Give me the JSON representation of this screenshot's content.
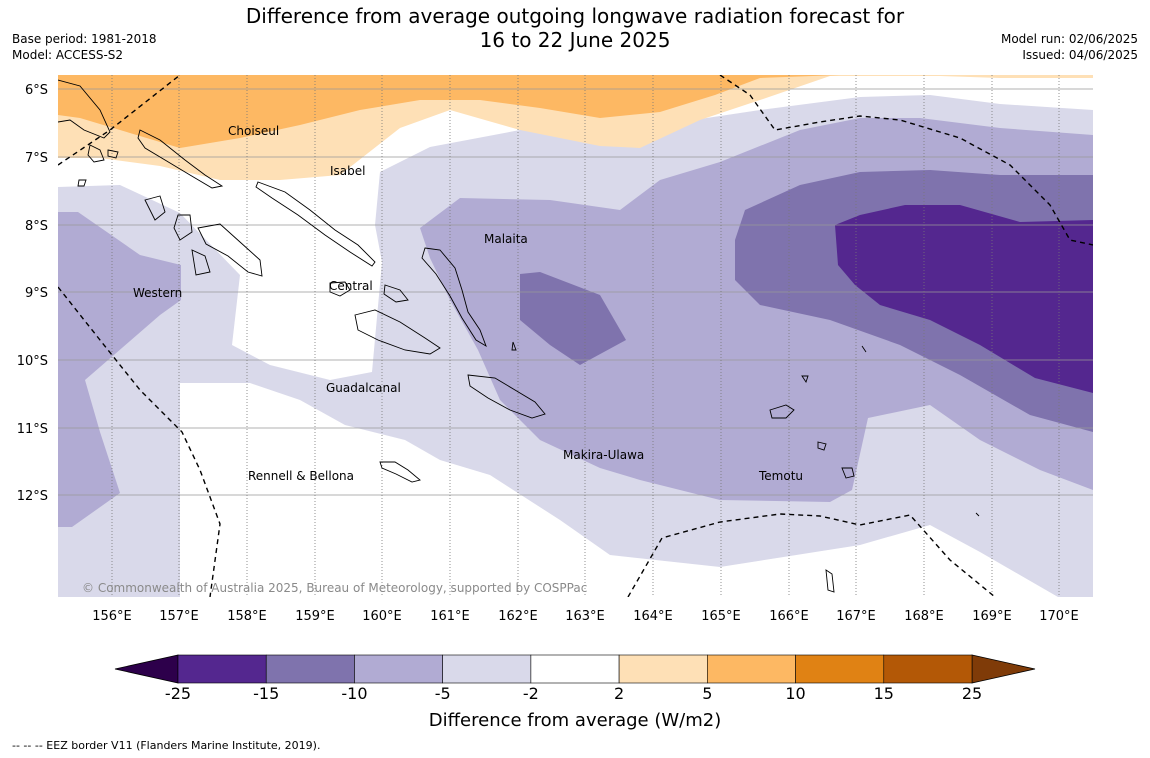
{
  "header": {
    "title_line1": "Difference from average outgoing longwave radiation forecast for",
    "title_line2": "16 to 22 June 2025",
    "base_period": "Base period: 1981-2018",
    "model": "Model: ACCESS-S2",
    "model_run": "Model run: 02/06/2025",
    "issued": "Issued: 04/06/2025"
  },
  "map": {
    "lat_labels": [
      "6°S",
      "7°S",
      "8°S",
      "9°S",
      "10°S",
      "11°S",
      "12°S"
    ],
    "lon_labels": [
      "156°E",
      "157°E",
      "158°E",
      "159°E",
      "160°E",
      "161°E",
      "162°E",
      "163°E",
      "164°E",
      "165°E",
      "166°E",
      "167°E",
      "168°E",
      "169°E",
      "170°E"
    ],
    "regions": {
      "choiseul": "Choiseul",
      "isabel": "Isabel",
      "malaita": "Malaita",
      "western": "Western",
      "central": "Central",
      "guadalcanal": "Guadalcanal",
      "makira_ulawa": "Makira-Ulawa",
      "temotu": "Temotu",
      "rennell_bellona": "Rennell & Bellona"
    },
    "copyright": "© Commonwealth of Australia 2025, Bureau of Meteorology, supported by COSPPac"
  },
  "colorbar": {
    "title": "Difference from average (W/m2)",
    "ticks": [
      "-25",
      "-15",
      "-10",
      "-5",
      "-2",
      "2",
      "5",
      "10",
      "15",
      "25"
    ],
    "colors": [
      "#54278f",
      "#7f73ad",
      "#b1abd3",
      "#d9d9ea",
      "#ffffff",
      "#fee0b6",
      "#fdb863",
      "#e08214",
      "#b35806"
    ],
    "under_color": "#2d004b",
    "over_color": "#7f3b08"
  },
  "footnote": "--  --  -- EEZ border V11 (Flanders Marine Institute, 2019)."
}
